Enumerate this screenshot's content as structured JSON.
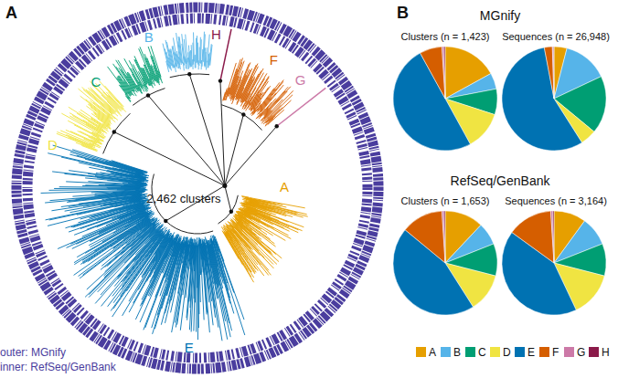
{
  "panel_a": {
    "panel_label": "A",
    "type": "tree",
    "center_text": "2,462 clusters",
    "rings": {
      "outer": "outer: MGnify",
      "inner": "inner: RefSeq/GenBank",
      "color": "#4a3d9e"
    },
    "clades": [
      {
        "label": "A",
        "color": "#E69F00"
      },
      {
        "label": "B",
        "color": "#56B4E9"
      },
      {
        "label": "C",
        "color": "#009E73"
      },
      {
        "label": "D",
        "color": "#F0E442"
      },
      {
        "label": "E",
        "color": "#0072B2"
      },
      {
        "label": "F",
        "color": "#D55E00"
      },
      {
        "label": "G",
        "color": "#CC79A7"
      },
      {
        "label": "H",
        "color": "#8B1A4A"
      }
    ]
  },
  "panel_b": {
    "panel_label": "B",
    "headers": [
      "MGnify",
      "RefSeq/GenBank"
    ]
  },
  "chart_data": [
    {
      "type": "pie",
      "title": "Clusters (n = 1,423)",
      "categories": [
        "A",
        "B",
        "C",
        "D",
        "E",
        "F",
        "G",
        "H"
      ],
      "values": [
        17,
        5,
        8,
        12,
        50,
        7,
        0.6,
        0.4
      ],
      "colors": [
        "#E69F00",
        "#56B4E9",
        "#009E73",
        "#F0E442",
        "#0072B2",
        "#D55E00",
        "#CC79A7",
        "#8B1A4A"
      ]
    },
    {
      "type": "pie",
      "title": "Sequences (n = 26,948)",
      "categories": [
        "A",
        "B",
        "C",
        "D",
        "E",
        "F",
        "G",
        "H"
      ],
      "values": [
        4,
        14,
        18,
        5,
        56,
        2.5,
        0.3,
        0.2
      ],
      "colors": [
        "#E69F00",
        "#56B4E9",
        "#009E73",
        "#F0E442",
        "#0072B2",
        "#D55E00",
        "#CC79A7",
        "#8B1A4A"
      ]
    },
    {
      "type": "pie",
      "title": "Clusters (n = 1,653)",
      "categories": [
        "A",
        "B",
        "C",
        "D",
        "E",
        "F",
        "G",
        "H"
      ],
      "values": [
        12,
        7,
        10,
        12,
        45,
        13,
        0.6,
        0.4
      ],
      "colors": [
        "#E69F00",
        "#56B4E9",
        "#009E73",
        "#F0E442",
        "#0072B2",
        "#D55E00",
        "#CC79A7",
        "#8B1A4A"
      ]
    },
    {
      "type": "pie",
      "title": "Sequences (n = 3,164)",
      "categories": [
        "A",
        "B",
        "C",
        "D",
        "E",
        "F",
        "G",
        "H"
      ],
      "values": [
        10,
        9,
        10,
        14,
        42,
        14,
        0.6,
        0.4
      ],
      "colors": [
        "#E69F00",
        "#56B4E9",
        "#009E73",
        "#F0E442",
        "#0072B2",
        "#D55E00",
        "#CC79A7",
        "#8B1A4A"
      ]
    }
  ]
}
